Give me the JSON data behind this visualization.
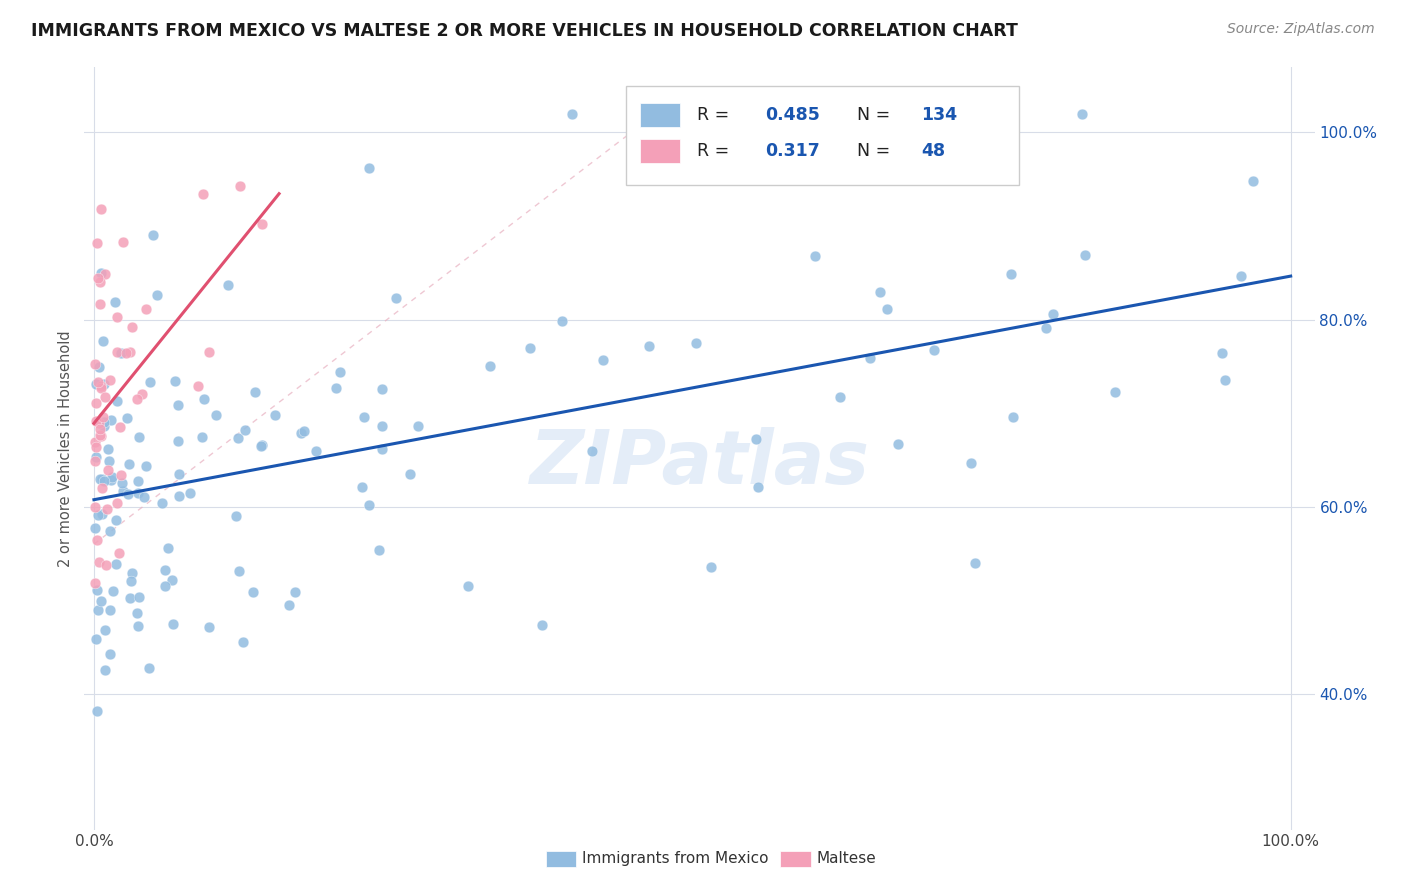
{
  "title": "IMMIGRANTS FROM MEXICO VS MALTESE 2 OR MORE VEHICLES IN HOUSEHOLD CORRELATION CHART",
  "source": "Source: ZipAtlas.com",
  "ylabel": "2 or more Vehicles in Household",
  "blue_color": "#92bce0",
  "pink_color": "#f4a0b8",
  "blue_line_color": "#1a56b0",
  "pink_line_color": "#e05070",
  "watermark": "ZIPatlas",
  "background_color": "#ffffff",
  "grid_color": "#d8dde8",
  "figsize": [
    14.06,
    8.92
  ],
  "dpi": 100,
  "blue_R": "0.485",
  "blue_N": "134",
  "pink_R": "0.317",
  "pink_N": "48",
  "legend_label_mexico": "Immigrants from Mexico",
  "legend_label_maltese": "Maltese"
}
